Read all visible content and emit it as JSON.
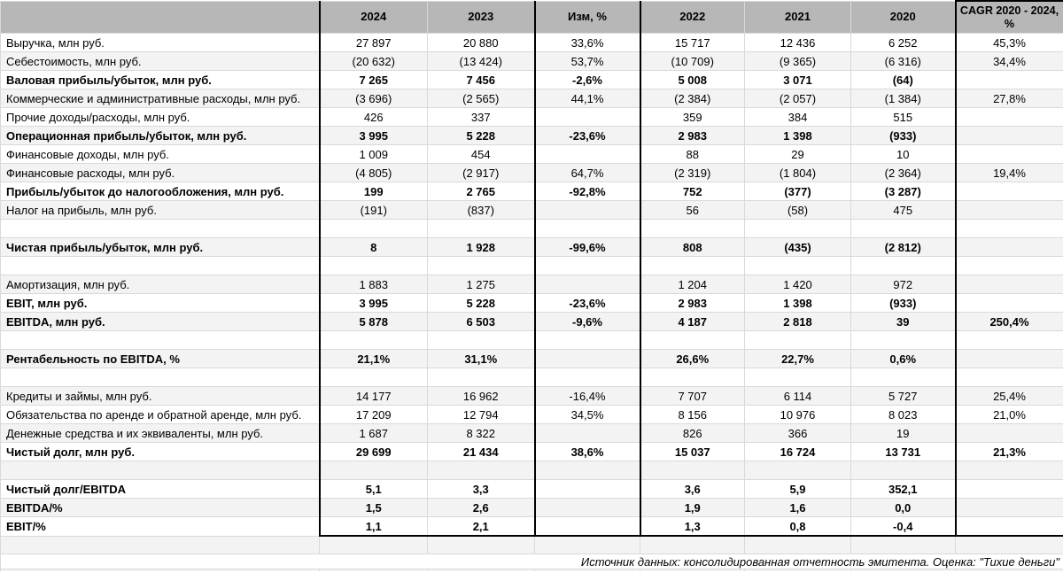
{
  "colors": {
    "header_bg": "#b7b7b7",
    "row_stripe_bg": "#f3f3f3",
    "row_bg": "#ffffff",
    "grid_line": "#d9d9d9",
    "frame_line": "#000000"
  },
  "table": {
    "columns": [
      "",
      "2024",
      "2023",
      "Изм, %",
      "2022",
      "2021",
      "2020",
      "CAGR 2020 - 2024, %"
    ],
    "rows": [
      {
        "label": "Выручка, млн руб.",
        "bold": false,
        "values": [
          "27 897",
          "20 880",
          "33,6%",
          "15 717",
          "12 436",
          "6 252",
          "45,3%"
        ]
      },
      {
        "label": "Себестоимость, млн руб.",
        "bold": false,
        "values": [
          "(20 632)",
          "(13 424)",
          "53,7%",
          "(10 709)",
          "(9 365)",
          "(6 316)",
          "34,4%"
        ]
      },
      {
        "label": "Валовая прибыль/убыток, млн руб.",
        "bold": true,
        "values": [
          "7 265",
          "7 456",
          "-2,6%",
          "5 008",
          "3 071",
          "(64)",
          ""
        ]
      },
      {
        "label": "Коммерческие и административные расходы, млн руб.",
        "bold": false,
        "values": [
          "(3 696)",
          "(2 565)",
          "44,1%",
          "(2 384)",
          "(2 057)",
          "(1 384)",
          "27,8%"
        ]
      },
      {
        "label": "Прочие доходы/расходы, млн руб.",
        "bold": false,
        "values": [
          "426",
          "337",
          "",
          "359",
          "384",
          "515",
          ""
        ]
      },
      {
        "label": "Операционная прибыль/убыток, млн руб.",
        "bold": true,
        "values": [
          "3 995",
          "5 228",
          "-23,6%",
          "2 983",
          "1 398",
          "(933)",
          ""
        ]
      },
      {
        "label": "Финансовые доходы, млн руб.",
        "bold": false,
        "values": [
          "1 009",
          "454",
          "",
          "88",
          "29",
          "10",
          ""
        ]
      },
      {
        "label": "Финансовые расходы, млн руб.",
        "bold": false,
        "values": [
          "(4 805)",
          "(2 917)",
          "64,7%",
          "(2 319)",
          "(1 804)",
          "(2 364)",
          "19,4%"
        ]
      },
      {
        "label": "Прибыль/убыток до налогообложения, млн руб.",
        "bold": true,
        "values": [
          "199",
          "2 765",
          "-92,8%",
          "752",
          "(377)",
          "(3 287)",
          ""
        ]
      },
      {
        "label": "Налог на прибыль, млн руб.",
        "bold": false,
        "values": [
          "(191)",
          "(837)",
          "",
          "56",
          "(58)",
          "475",
          ""
        ]
      },
      {
        "label": "",
        "bold": false,
        "values": [
          "",
          "",
          "",
          "",
          "",
          "",
          ""
        ]
      },
      {
        "label": "Чистая прибыль/убыток, млн руб.",
        "bold": true,
        "values": [
          "8",
          "1 928",
          "-99,6%",
          "808",
          "(435)",
          "(2 812)",
          ""
        ]
      },
      {
        "label": "",
        "bold": false,
        "values": [
          "",
          "",
          "",
          "",
          "",
          "",
          ""
        ]
      },
      {
        "label": "Амортизация, млн руб.",
        "bold": false,
        "values": [
          "1 883",
          "1 275",
          "",
          "1 204",
          "1 420",
          "972",
          ""
        ]
      },
      {
        "label": "EBIT, млн руб.",
        "bold": true,
        "values": [
          "3 995",
          "5 228",
          "-23,6%",
          "2 983",
          "1 398",
          "(933)",
          ""
        ]
      },
      {
        "label": "EBITDA, млн руб.",
        "bold": true,
        "values": [
          "5 878",
          "6 503",
          "-9,6%",
          "4 187",
          "2 818",
          "39",
          "250,4%"
        ]
      },
      {
        "label": "",
        "bold": false,
        "values": [
          "",
          "",
          "",
          "",
          "",
          "",
          ""
        ]
      },
      {
        "label": "Рентабельность по EBITDA, %",
        "bold": true,
        "values": [
          "21,1%",
          "31,1%",
          "",
          "26,6%",
          "22,7%",
          "0,6%",
          ""
        ]
      },
      {
        "label": "",
        "bold": false,
        "values": [
          "",
          "",
          "",
          "",
          "",
          "",
          ""
        ]
      },
      {
        "label": "Кредиты и займы, млн руб.",
        "bold": false,
        "values": [
          "14 177",
          "16 962",
          "-16,4%",
          "7 707",
          "6 114",
          "5 727",
          "25,4%"
        ]
      },
      {
        "label": "Обязательства по аренде и обратной аренде, млн руб.",
        "bold": false,
        "values": [
          "17 209",
          "12 794",
          "34,5%",
          "8 156",
          "10 976",
          "8 023",
          "21,0%"
        ]
      },
      {
        "label": "Денежные средства и их эквиваленты, млн руб.",
        "bold": false,
        "values": [
          "1 687",
          "8 322",
          "",
          "826",
          "366",
          "19",
          ""
        ]
      },
      {
        "label": "Чистый долг, млн руб.",
        "bold": true,
        "values": [
          "29 699",
          "21 434",
          "38,6%",
          "15 037",
          "16 724",
          "13 731",
          "21,3%"
        ]
      },
      {
        "label": "",
        "bold": false,
        "values": [
          "",
          "",
          "",
          "",
          "",
          "",
          ""
        ]
      },
      {
        "label": "Чистый долг/EBITDA",
        "bold": true,
        "values": [
          "5,1",
          "3,3",
          "",
          "3,6",
          "5,9",
          "352,1",
          ""
        ]
      },
      {
        "label": "EBITDA/%",
        "bold": true,
        "values": [
          "1,5",
          "2,6",
          "",
          "1,9",
          "1,6",
          "0,0",
          ""
        ]
      },
      {
        "label": "EBIT/%",
        "bold": true,
        "values": [
          "1,1",
          "2,1",
          "",
          "1,3",
          "0,8",
          "-0,4",
          ""
        ]
      }
    ]
  },
  "footer": {
    "source_note": "Источник данных: консолидированная отчетность эмитента. Оценка: \"Тихие деньги\""
  }
}
